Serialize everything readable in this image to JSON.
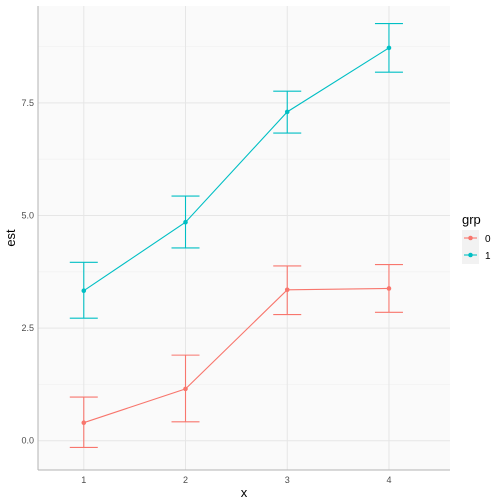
{
  "chart_data": {
    "type": "line",
    "xlabel": "x",
    "ylabel": "est",
    "x": [
      1,
      2,
      3,
      4
    ],
    "xlim": [
      0.55,
      4.6
    ],
    "ylim": [
      -0.65,
      9.65
    ],
    "x_ticks": [
      "1",
      "2",
      "3",
      "4"
    ],
    "y_ticks": [
      "0.0",
      "2.5",
      "5.0",
      "7.5"
    ],
    "y_tick_values": [
      0,
      2.5,
      5,
      7.5
    ],
    "grid": true,
    "error_bars": true,
    "legend": {
      "title": "grp",
      "placement": "right"
    },
    "series": [
      {
        "name": "0",
        "color": "#F8766D",
        "values": [
          0.4,
          1.15,
          3.35,
          3.38
        ],
        "lower": [
          -0.15,
          0.42,
          2.8,
          2.85
        ],
        "upper": [
          0.97,
          1.9,
          3.88,
          3.91
        ]
      },
      {
        "name": "1",
        "color": "#00BFC4",
        "values": [
          3.33,
          4.85,
          7.3,
          8.72
        ],
        "lower": [
          2.72,
          4.28,
          6.83,
          8.18
        ],
        "upper": [
          3.96,
          5.43,
          7.76,
          9.26
        ]
      }
    ]
  }
}
